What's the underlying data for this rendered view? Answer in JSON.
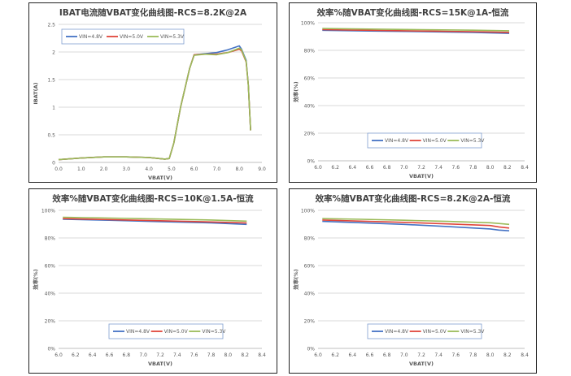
{
  "colors": {
    "vin_4_8": "#4472c4",
    "vin_5_0": "#e0453a",
    "vin_5_3": "#9bbb59",
    "grid": "#d9d9d9",
    "axis_text": "#595959"
  },
  "chart_data": [
    {
      "type": "line",
      "title": "IBAT电流随VBAT变化曲线图-RCS=8.2K@2A",
      "xlabel": "VBAT(V)",
      "ylabel": "IBAT(A)",
      "xlim": [
        0,
        9
      ],
      "ylim": [
        0,
        2.5
      ],
      "xticks": [
        0,
        1,
        2,
        3,
        4,
        5,
        6,
        7,
        8,
        9
      ],
      "xtick_decimals": 1,
      "yticks": [
        0,
        0.5,
        1,
        1.5,
        2,
        2.5
      ],
      "ytick_labels": [
        "0",
        "0.5",
        "1",
        "1.5",
        "2",
        "2.5"
      ],
      "grid": true,
      "legend_position": "top-left",
      "series": [
        {
          "name": "VIN=4.8V",
          "color": "#4472c4",
          "x": [
            0,
            1,
            2,
            3,
            4,
            4.7,
            4.9,
            5.1,
            5.4,
            5.8,
            6.0,
            6.5,
            7.0,
            7.5,
            8.0,
            8.1,
            8.3,
            8.4,
            8.5
          ],
          "y": [
            0.05,
            0.08,
            0.1,
            0.1,
            0.09,
            0.06,
            0.07,
            0.35,
            1.0,
            1.7,
            1.95,
            1.97,
            1.99,
            2.04,
            2.11,
            2.05,
            1.85,
            1.4,
            0.58
          ]
        },
        {
          "name": "VIN=5.0V",
          "color": "#e0453a",
          "x": [
            0,
            1,
            2,
            3,
            4,
            4.7,
            4.9,
            5.1,
            5.4,
            5.8,
            6.0,
            6.5,
            7.0,
            7.5,
            8.0,
            8.1,
            8.3,
            8.4,
            8.5
          ],
          "y": [
            0.05,
            0.08,
            0.1,
            0.1,
            0.09,
            0.06,
            0.07,
            0.35,
            1.0,
            1.7,
            1.95,
            1.96,
            1.96,
            1.99,
            2.05,
            2.02,
            1.82,
            1.4,
            0.58
          ]
        },
        {
          "name": "VIN=5.3V",
          "color": "#9bbb59",
          "x": [
            0,
            1,
            2,
            3,
            4,
            4.7,
            4.9,
            5.1,
            5.4,
            5.8,
            6.0,
            6.5,
            7.0,
            7.5,
            8.0,
            8.1,
            8.3,
            8.4,
            8.5
          ],
          "y": [
            0.05,
            0.08,
            0.1,
            0.1,
            0.09,
            0.06,
            0.07,
            0.35,
            1.0,
            1.7,
            1.94,
            1.96,
            1.95,
            1.99,
            2.07,
            2.04,
            1.83,
            1.4,
            0.58
          ]
        }
      ]
    },
    {
      "type": "line",
      "title": "效率%随VBAT变化曲线图-RCS=15K@1A-恒流",
      "xlabel": "VBAT(V)",
      "ylabel": "效率(%)",
      "xlim": [
        6.0,
        8.4
      ],
      "ylim": [
        0,
        100
      ],
      "xticks": [
        6.0,
        6.2,
        6.4,
        6.6,
        6.8,
        7.0,
        7.2,
        7.4,
        7.6,
        7.8,
        8.0,
        8.2,
        8.4
      ],
      "xtick_decimals": 1,
      "yticks": [
        0,
        20,
        40,
        60,
        80,
        100
      ],
      "ytick_labels": [
        "0%",
        "20%",
        "40%",
        "60%",
        "80%",
        "100%"
      ],
      "grid": true,
      "legend_position": "bottom-right",
      "series": [
        {
          "name": "VIN=4.8V",
          "color": "#4472c4",
          "x": [
            6.05,
            6.6,
            7.2,
            7.8,
            8.22
          ],
          "y": [
            94.5,
            94.0,
            93.5,
            93.0,
            92.3
          ]
        },
        {
          "name": "VIN=5.0V",
          "color": "#e0453a",
          "x": [
            6.05,
            6.6,
            7.2,
            7.8,
            8.22
          ],
          "y": [
            95.0,
            94.5,
            94.0,
            93.5,
            93.0
          ]
        },
        {
          "name": "VIN=5.3V",
          "color": "#9bbb59",
          "x": [
            6.05,
            6.6,
            7.2,
            7.8,
            8.22
          ],
          "y": [
            95.8,
            95.4,
            95.0,
            94.6,
            94.2
          ]
        }
      ]
    },
    {
      "type": "line",
      "title": "效率%随VBAT变化曲线图-RCS=10K@1.5A-恒流",
      "xlabel": "VBAT(V)",
      "ylabel": "效率(%)",
      "xlim": [
        6.0,
        8.4
      ],
      "ylim": [
        0,
        100
      ],
      "xticks": [
        6.0,
        6.2,
        6.4,
        6.6,
        6.8,
        7.0,
        7.2,
        7.4,
        7.6,
        7.8,
        8.0,
        8.2,
        8.4
      ],
      "xtick_decimals": 1,
      "yticks": [
        0,
        20,
        40,
        60,
        80,
        100
      ],
      "ytick_labels": [
        "0%",
        "20%",
        "40%",
        "60%",
        "80%",
        "100%"
      ],
      "grid": true,
      "legend_position": "bottom-right",
      "series": [
        {
          "name": "VIN=4.8V",
          "color": "#4472c4",
          "x": [
            6.05,
            6.6,
            7.2,
            7.8,
            8.22
          ],
          "y": [
            93.5,
            92.8,
            91.8,
            90.9,
            89.8
          ]
        },
        {
          "name": "VIN=5.0V",
          "color": "#e0453a",
          "x": [
            6.05,
            6.6,
            7.2,
            7.8,
            8.22
          ],
          "y": [
            94.0,
            93.3,
            92.5,
            91.6,
            90.8
          ]
        },
        {
          "name": "VIN=5.3V",
          "color": "#9bbb59",
          "x": [
            6.05,
            6.6,
            7.2,
            7.8,
            8.22
          ],
          "y": [
            95.0,
            94.4,
            93.7,
            93.0,
            92.2
          ]
        }
      ]
    },
    {
      "type": "line",
      "title": "效率%随VBAT变化曲线图-RCS=8.2K@2A-恒流",
      "xlabel": "VBAT(V)",
      "ylabel": "效率(%)",
      "xlim": [
        6.0,
        8.4
      ],
      "ylim": [
        0,
        100
      ],
      "xticks": [
        6.0,
        6.2,
        6.4,
        6.6,
        6.8,
        7.0,
        7.2,
        7.4,
        7.6,
        7.8,
        8.0,
        8.2,
        8.4
      ],
      "xtick_decimals": 1,
      "yticks": [
        0,
        20,
        40,
        60,
        80,
        100
      ],
      "ytick_labels": [
        "0%",
        "20%",
        "40%",
        "60%",
        "80%",
        "100%"
      ],
      "grid": true,
      "legend_position": "bottom-right",
      "series": [
        {
          "name": "VIN=4.8V",
          "color": "#4472c4",
          "x": [
            6.05,
            6.5,
            7.0,
            7.5,
            8.0,
            8.1,
            8.22
          ],
          "y": [
            92.0,
            91.0,
            89.8,
            88.3,
            86.5,
            85.7,
            85.2
          ]
        },
        {
          "name": "VIN=5.0V",
          "color": "#e0453a",
          "x": [
            6.05,
            6.5,
            7.0,
            7.5,
            8.0,
            8.1,
            8.22
          ],
          "y": [
            93.0,
            92.2,
            91.3,
            90.2,
            89.0,
            88.0,
            87.2
          ]
        },
        {
          "name": "VIN=5.3V",
          "color": "#9bbb59",
          "x": [
            6.05,
            6.5,
            7.0,
            7.5,
            8.0,
            8.1,
            8.22
          ],
          "y": [
            94.0,
            93.5,
            92.8,
            92.0,
            91.0,
            90.5,
            89.8
          ]
        }
      ]
    }
  ]
}
